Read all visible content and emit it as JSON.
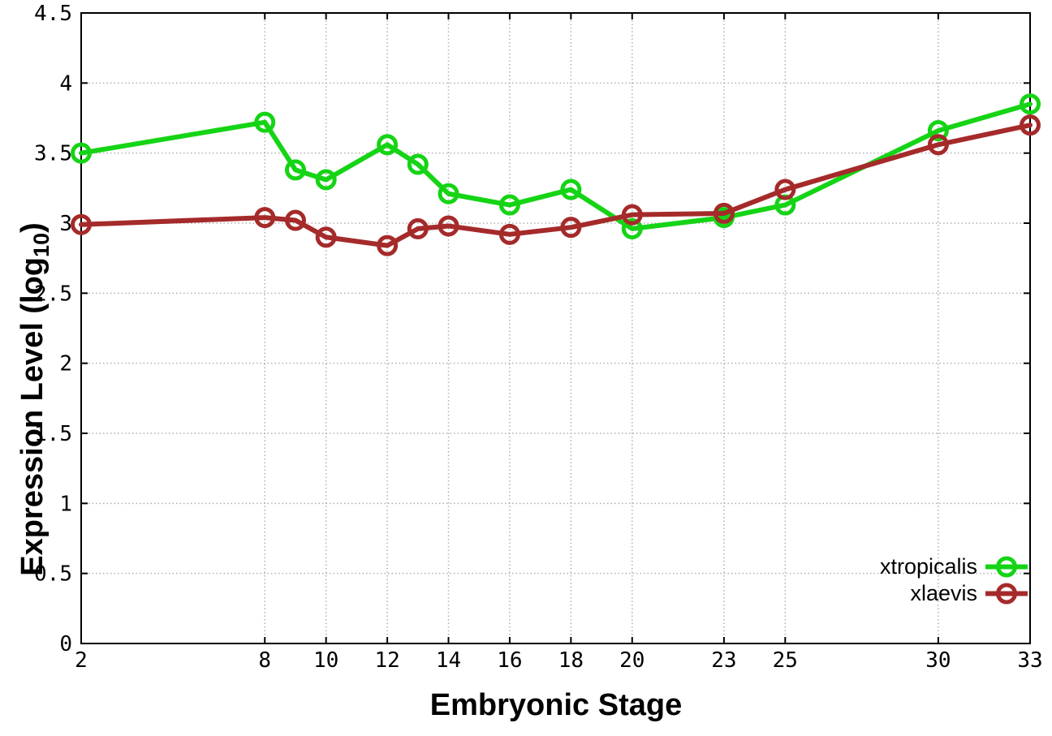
{
  "figure": {
    "xlabel": "Embryonic Stage",
    "ylabel_pre": "Expression Level (log",
    "ylabel_sub": "10",
    "ylabel_post": ")"
  },
  "chart_data": {
    "type": "line",
    "title": "",
    "xlabel": "Embryonic Stage",
    "ylabel": "Expression Level (log10)",
    "xlim": [
      2,
      33
    ],
    "ylim": [
      0,
      4.5
    ],
    "grid": true,
    "legend_position": "bottom-right",
    "background": "#ffffff",
    "grid_color": "#b0b0b0",
    "border_color": "#000000",
    "x": [
      2,
      8,
      9,
      10,
      12,
      13,
      14,
      16,
      18,
      20,
      23,
      25,
      30,
      33
    ],
    "x_tick_values": [
      2,
      8,
      10,
      12,
      14,
      16,
      18,
      20,
      23,
      25,
      30,
      33
    ],
    "x_tick_labels": [
      "2",
      "8",
      "10",
      "12",
      "14",
      "16",
      "18",
      "20",
      "23",
      "25",
      "30",
      "33"
    ],
    "y_tick_values": [
      0,
      0.5,
      1,
      1.5,
      2,
      2.5,
      3,
      3.5,
      4,
      4.5
    ],
    "y_tick_labels": [
      "0",
      "0.5",
      "1",
      "1.5",
      "2",
      "2.5",
      "3",
      "3.5",
      "4",
      "4.5"
    ],
    "series": [
      {
        "name": "xtropicalis",
        "color": "#15d415",
        "marker": "open-circle",
        "values": [
          3.5,
          3.72,
          3.38,
          3.31,
          3.56,
          3.42,
          3.21,
          3.13,
          3.24,
          2.96,
          3.04,
          3.13,
          3.66,
          3.85
        ]
      },
      {
        "name": "xlaevis",
        "color": "#a52a2a",
        "marker": "open-circle",
        "values": [
          2.99,
          3.04,
          3.02,
          2.9,
          2.84,
          2.96,
          2.98,
          2.92,
          2.97,
          3.06,
          3.07,
          3.24,
          3.56,
          3.7
        ]
      }
    ]
  }
}
